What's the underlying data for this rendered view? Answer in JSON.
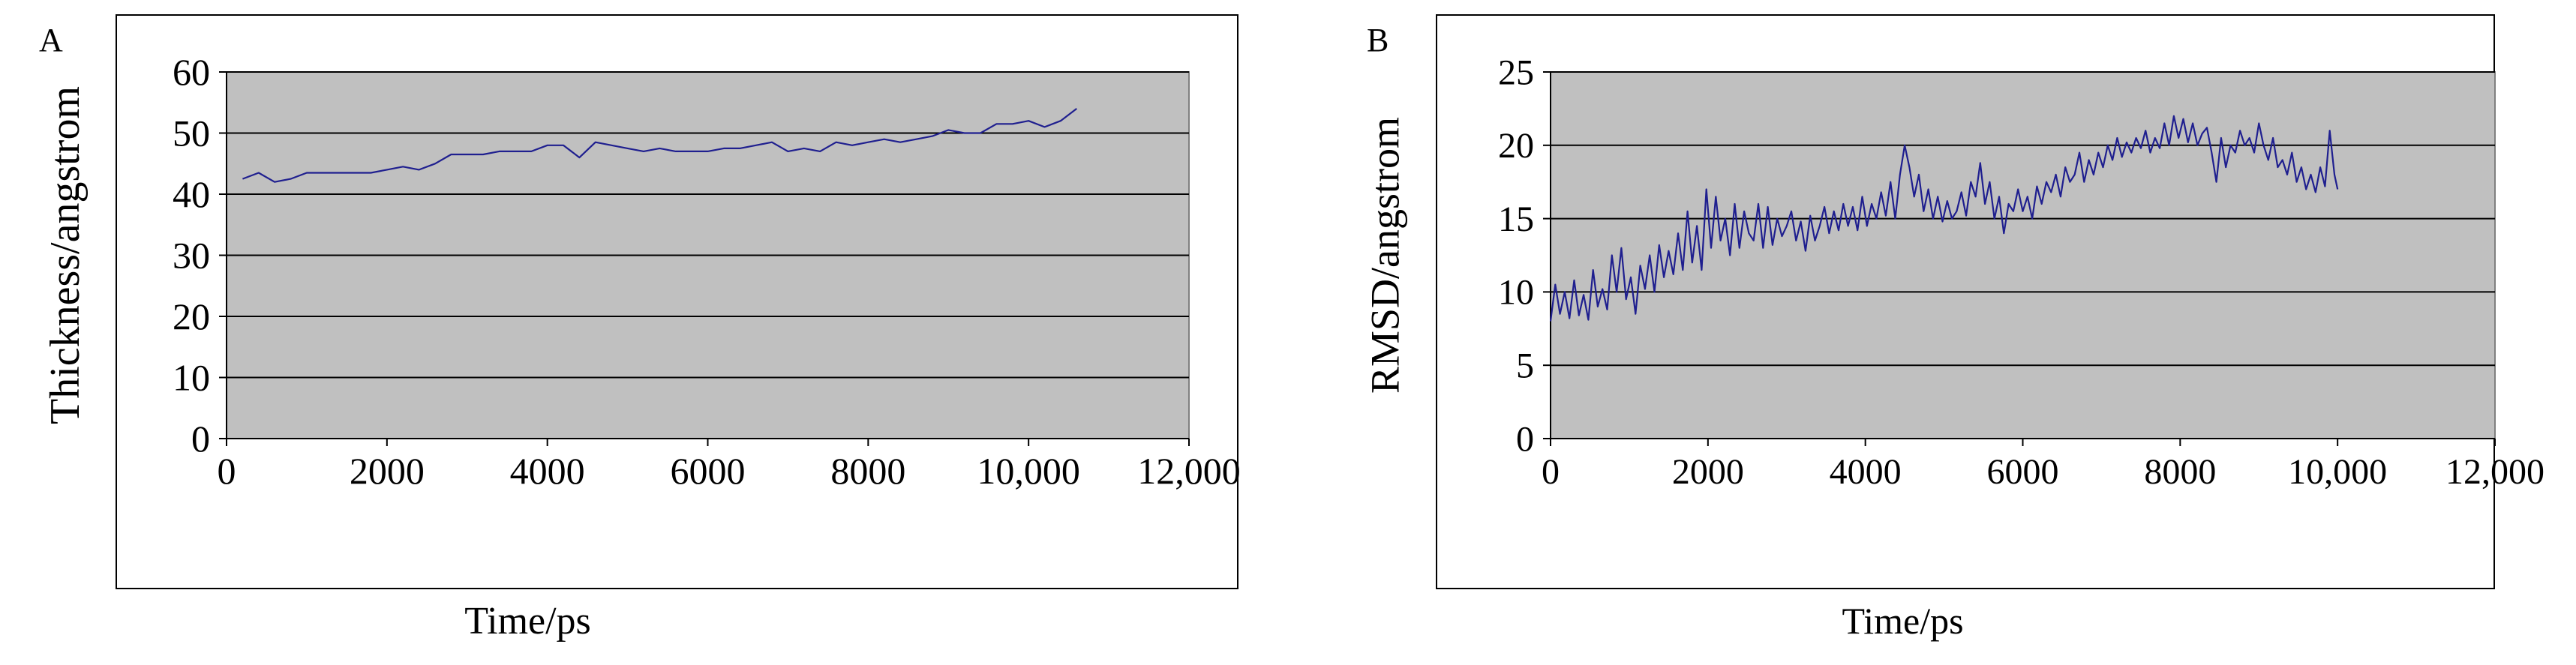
{
  "colors": {
    "plot_background": "#c0c0c0",
    "gridline": "#000000",
    "line": "#1f1f8f",
    "frame": "#000000"
  },
  "chart_data": [
    {
      "panel_label": "A",
      "type": "line",
      "xlabel": "Time/ps",
      "ylabel": "Thickness/angstrom",
      "xlim": [
        0,
        12000
      ],
      "ylim": [
        0,
        60
      ],
      "x_ticks": [
        0,
        2000,
        4000,
        6000,
        8000,
        10000,
        12000
      ],
      "x_tick_labels": [
        "0",
        "2000",
        "4000",
        "6000",
        "8000",
        "10,000",
        "12,000"
      ],
      "y_ticks": [
        0,
        10,
        20,
        30,
        40,
        50,
        60
      ],
      "y_tick_labels": [
        "0",
        "10",
        "20",
        "30",
        "40",
        "50",
        "60"
      ],
      "grid": "horizontal",
      "legend": "none",
      "series": [
        {
          "x": [
            200,
            400,
            600,
            800,
            1000,
            1200,
            1400,
            1600,
            1800,
            2000,
            2200,
            2400,
            2600,
            2800,
            3000,
            3200,
            3400,
            3600,
            3800,
            4000,
            4200,
            4400,
            4600,
            4800,
            5000,
            5200,
            5400,
            5600,
            5800,
            6000,
            6200,
            6400,
            6600,
            6800,
            7000,
            7200,
            7400,
            7600,
            7800,
            8000,
            8200,
            8400,
            8600,
            8800,
            9000,
            9200,
            9400,
            9600,
            9800,
            10000,
            10200,
            10400,
            10600
          ],
          "y": [
            42.5,
            43.5,
            42,
            42.5,
            43.5,
            43.5,
            43.5,
            43.5,
            43.5,
            44,
            44.5,
            44,
            45,
            46.5,
            46.5,
            46.5,
            47,
            47,
            47,
            48,
            48,
            46,
            48.5,
            48,
            47.5,
            47,
            47.5,
            47,
            47,
            47,
            47.5,
            47.5,
            48,
            48.5,
            47,
            47.5,
            47,
            48.5,
            48,
            48.5,
            49,
            48.5,
            49,
            49.5,
            50.5,
            50,
            50,
            51.5,
            51.5,
            52,
            51,
            52,
            54
          ]
        }
      ]
    },
    {
      "panel_label": "B",
      "type": "line",
      "xlabel": "Time/ps",
      "ylabel": "RMSD/angstrom",
      "xlim": [
        0,
        12000
      ],
      "ylim": [
        0,
        25
      ],
      "x_ticks": [
        0,
        2000,
        4000,
        6000,
        8000,
        10000,
        12000
      ],
      "x_tick_labels": [
        "0",
        "2000",
        "4000",
        "6000",
        "8000",
        "10,000",
        "12,000"
      ],
      "y_ticks": [
        0,
        5,
        10,
        15,
        20,
        25
      ],
      "y_tick_labels": [
        "0",
        "5",
        "10",
        "15",
        "20",
        "25"
      ],
      "grid": "horizontal",
      "legend": "none",
      "series": [
        {
          "x": [
            0,
            60,
            120,
            180,
            240,
            300,
            360,
            420,
            480,
            540,
            600,
            660,
            720,
            780,
            840,
            900,
            960,
            1020,
            1080,
            1140,
            1200,
            1260,
            1320,
            1380,
            1440,
            1500,
            1560,
            1620,
            1680,
            1740,
            1800,
            1860,
            1920,
            1980,
            2040,
            2100,
            2160,
            2220,
            2280,
            2340,
            2400,
            2460,
            2520,
            2580,
            2640,
            2700,
            2760,
            2820,
            2880,
            2940,
            3000,
            3060,
            3120,
            3180,
            3240,
            3300,
            3360,
            3420,
            3480,
            3540,
            3600,
            3660,
            3720,
            3780,
            3840,
            3900,
            3960,
            4020,
            4080,
            4140,
            4200,
            4260,
            4320,
            4380,
            4440,
            4500,
            4560,
            4620,
            4680,
            4740,
            4800,
            4860,
            4920,
            4980,
            5040,
            5100,
            5160,
            5220,
            5280,
            5340,
            5400,
            5460,
            5520,
            5580,
            5640,
            5700,
            5760,
            5820,
            5880,
            5940,
            6000,
            6060,
            6120,
            6180,
            6240,
            6300,
            6360,
            6420,
            6480,
            6540,
            6600,
            6660,
            6720,
            6780,
            6840,
            6900,
            6960,
            7020,
            7080,
            7140,
            7200,
            7260,
            7320,
            7380,
            7440,
            7500,
            7560,
            7620,
            7680,
            7740,
            7800,
            7860,
            7920,
            7980,
            8040,
            8100,
            8160,
            8220,
            8280,
            8340,
            8400,
            8460,
            8520,
            8580,
            8640,
            8700,
            8760,
            8820,
            8880,
            8940,
            9000,
            9060,
            9120,
            9180,
            9240,
            9300,
            9360,
            9420,
            9480,
            9540,
            9600,
            9660,
            9720,
            9780,
            9840,
            9900,
            9960,
            10000
          ],
          "y": [
            8,
            10.5,
            8.5,
            10,
            8.2,
            10.8,
            8.4,
            9.8,
            8.1,
            11.5,
            9,
            10.2,
            8.8,
            12.5,
            10,
            13,
            9.5,
            11,
            8.5,
            11.8,
            10.2,
            12.5,
            10,
            13.2,
            11,
            12.8,
            11.2,
            14,
            11.5,
            15.5,
            12,
            14.5,
            11.5,
            17,
            13,
            16.5,
            13.5,
            15,
            12.5,
            16,
            13,
            15.5,
            14,
            13.5,
            16,
            13,
            15.8,
            13.2,
            15,
            13.8,
            14.5,
            15.5,
            13.5,
            14.8,
            12.8,
            15.2,
            13.5,
            14.5,
            15.8,
            14,
            15.5,
            14.2,
            16,
            14.5,
            15.8,
            14.2,
            16.5,
            14.5,
            16,
            15,
            16.8,
            15.2,
            17.5,
            15,
            18,
            20,
            18.5,
            16.5,
            18,
            15.5,
            17,
            15,
            16.5,
            14.8,
            16.2,
            15,
            15.5,
            16.8,
            15.2,
            17.5,
            16.5,
            18.8,
            16,
            17.5,
            15,
            16.5,
            14,
            16,
            15.5,
            17,
            15.5,
            16.5,
            15,
            17.2,
            16,
            17.5,
            16.8,
            18,
            16.5,
            18.5,
            17.5,
            18,
            19.5,
            17.5,
            19,
            18,
            19.5,
            18.5,
            20,
            19,
            20.5,
            19.2,
            20.2,
            19.5,
            20.5,
            19.8,
            21,
            19.5,
            20.5,
            19.8,
            21.5,
            20,
            22,
            20.5,
            21.8,
            20.2,
            21.5,
            20,
            20.8,
            21.2,
            19.5,
            17.5,
            20.5,
            18.5,
            20,
            19.5,
            21,
            20,
            20.5,
            19.5,
            21.5,
            20,
            19,
            20.5,
            18.5,
            19,
            18,
            19.5,
            17.5,
            18.5,
            17,
            18,
            16.8,
            18.5,
            17.2,
            21,
            18,
            17
          ]
        }
      ]
    }
  ]
}
